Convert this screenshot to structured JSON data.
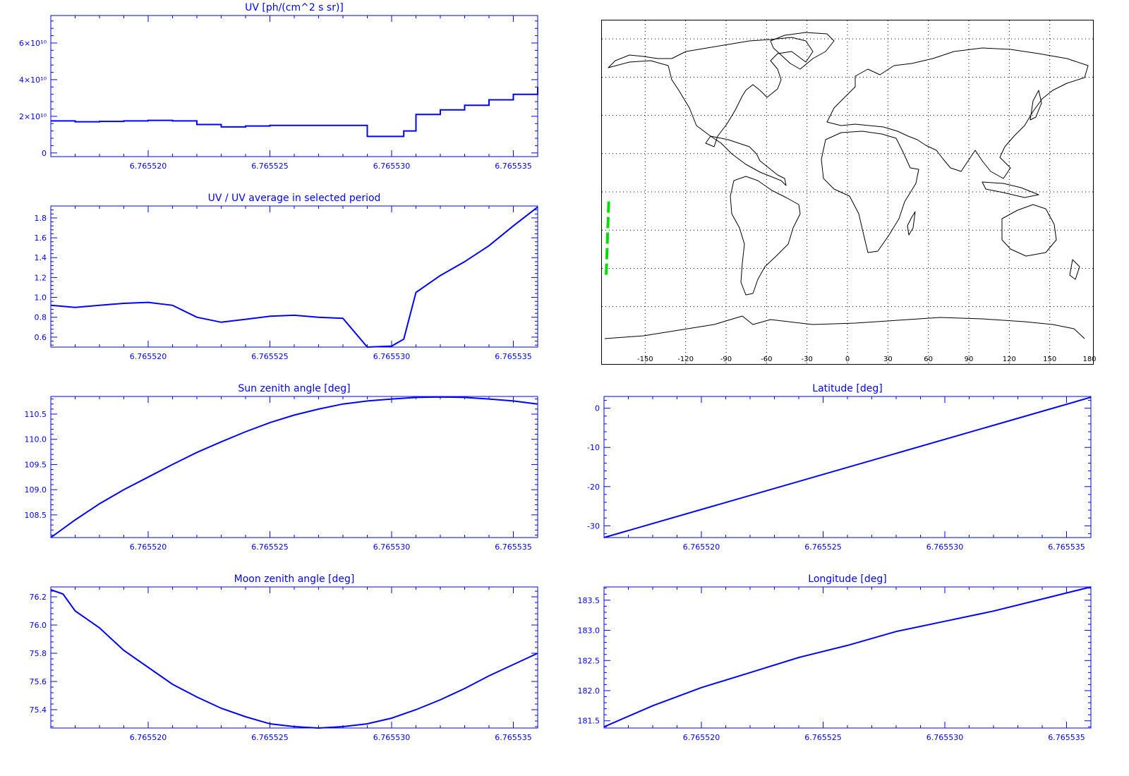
{
  "colors": {
    "axis": "#0000ff",
    "series": "#0000ff",
    "track": "#00dd00",
    "map": "#000000"
  },
  "map": {
    "lon_ticks": [
      "-150",
      "-120",
      "-90",
      "-60",
      "-30",
      "0",
      "30",
      "60",
      "90",
      "120",
      "150",
      "180"
    ],
    "lon_range": [
      -180,
      180
    ],
    "lat_range": [
      -90,
      90
    ],
    "grid": "dotted",
    "track": [
      [
        -177,
        -5
      ],
      [
        -177.5,
        -15
      ],
      [
        -178,
        -25
      ],
      [
        -178.5,
        -35
      ],
      [
        -179,
        -45
      ]
    ]
  },
  "chart_data": [
    {
      "type": "line",
      "id": "uv",
      "title": "UV [ph/(cm^2 s sr)]",
      "step": true,
      "xlim": [
        6.765516,
        6.765536
      ],
      "xticks": [
        6.76552,
        6.765525,
        6.76553,
        6.765535
      ],
      "xtick_labels": [
        "6.765520",
        "6.765525",
        "6.765530",
        "6.765535"
      ],
      "ylim": [
        -2000000000.0,
        75000000000.0
      ],
      "yticks": [
        0,
        20000000000.0,
        40000000000.0,
        60000000000.0
      ],
      "ytick_labels": [
        "0",
        "2×10¹⁰",
        "4×10¹⁰",
        "6×10¹⁰"
      ],
      "x": [
        6.765516,
        6.765517,
        6.765518,
        6.765519,
        6.76552,
        6.765521,
        6.765522,
        6.765523,
        6.765524,
        6.765525,
        6.765526,
        6.765527,
        6.765528,
        6.765529,
        6.76553,
        6.7655305,
        6.765531,
        6.765532,
        6.765533,
        6.765534,
        6.765535,
        6.765536
      ],
      "y": [
        17500000000.0,
        17000000000.0,
        17200000000.0,
        17500000000.0,
        17800000000.0,
        17500000000.0,
        15500000000.0,
        14200000000.0,
        14700000000.0,
        15000000000.0,
        15000000000.0,
        15000000000.0,
        15000000000.0,
        9000000000.0,
        9000000000.0,
        12000000000.0,
        21000000000.0,
        23500000000.0,
        26000000000.0,
        29000000000.0,
        32000000000.0,
        36000000000.0
      ]
    },
    {
      "type": "line",
      "id": "ratio",
      "title": "UV / UV average in selected period",
      "xlim": [
        6.765516,
        6.765536
      ],
      "xticks": [
        6.76552,
        6.765525,
        6.76553,
        6.765535
      ],
      "xtick_labels": [
        "6.765520",
        "6.765525",
        "6.765530",
        "6.765535"
      ],
      "ylim": [
        0.5,
        1.92
      ],
      "yticks": [
        0.6,
        0.8,
        1.0,
        1.2,
        1.4,
        1.6,
        1.8
      ],
      "ytick_labels": [
        "0.6",
        "0.8",
        "1.0",
        "1.2",
        "1.4",
        "1.6",
        "1.8"
      ],
      "x": [
        6.765516,
        6.765517,
        6.765518,
        6.765519,
        6.76552,
        6.765521,
        6.765522,
        6.765523,
        6.765524,
        6.765525,
        6.765526,
        6.765527,
        6.765528,
        6.765529,
        6.76553,
        6.7655305,
        6.765531,
        6.765532,
        6.765533,
        6.765534,
        6.765535,
        6.765536
      ],
      "y": [
        0.92,
        0.9,
        0.92,
        0.94,
        0.95,
        0.92,
        0.8,
        0.75,
        0.78,
        0.81,
        0.82,
        0.8,
        0.79,
        0.5,
        0.51,
        0.58,
        1.05,
        1.22,
        1.36,
        1.52,
        1.72,
        1.91
      ]
    },
    {
      "type": "line",
      "id": "sun",
      "title": "Sun zenith angle [deg]",
      "xlim": [
        6.765516,
        6.765536
      ],
      "xticks": [
        6.76552,
        6.765525,
        6.76553,
        6.765535
      ],
      "xtick_labels": [
        "6.765520",
        "6.765525",
        "6.765530",
        "6.765535"
      ],
      "ylim": [
        108.05,
        110.85
      ],
      "yticks": [
        108.5,
        109.0,
        109.5,
        110.0,
        110.5
      ],
      "ytick_labels": [
        "108.5",
        "109.0",
        "109.5",
        "110.0",
        "110.5"
      ],
      "x": [
        6.765516,
        6.765517,
        6.765518,
        6.765519,
        6.76552,
        6.765521,
        6.765522,
        6.765523,
        6.765524,
        6.765525,
        6.765526,
        6.765527,
        6.765528,
        6.765529,
        6.76553,
        6.765531,
        6.765532,
        6.765533,
        6.765534,
        6.765535,
        6.765536
      ],
      "y": [
        108.05,
        108.4,
        108.72,
        109.0,
        109.25,
        109.5,
        109.74,
        109.95,
        110.15,
        110.33,
        110.48,
        110.6,
        110.7,
        110.76,
        110.8,
        110.83,
        110.84,
        110.83,
        110.8,
        110.76,
        110.7
      ]
    },
    {
      "type": "line",
      "id": "lat",
      "title": "Latitude [deg]",
      "xlim": [
        6.765516,
        6.765536
      ],
      "xticks": [
        6.76552,
        6.765525,
        6.76553,
        6.765535
      ],
      "xtick_labels": [
        "6.765520",
        "6.765525",
        "6.765530",
        "6.765535"
      ],
      "ylim": [
        -33,
        3
      ],
      "yticks": [
        -30,
        -20,
        -10,
        0
      ],
      "ytick_labels": [
        "-30",
        "-20",
        "-10",
        "0"
      ],
      "x": [
        6.765516,
        6.765536
      ],
      "y": [
        -33,
        2.8
      ]
    },
    {
      "type": "line",
      "id": "moon",
      "title": "Moon zenith angle [deg]",
      "xlim": [
        6.765516,
        6.765536
      ],
      "xticks": [
        6.76552,
        6.765525,
        6.76553,
        6.765535
      ],
      "xtick_labels": [
        "6.765520",
        "6.765525",
        "6.765530",
        "6.765535"
      ],
      "ylim": [
        75.27,
        76.27
      ],
      "yticks": [
        75.4,
        75.6,
        75.8,
        76.0,
        76.2
      ],
      "ytick_labels": [
        "75.4",
        "75.6",
        "75.8",
        "76.0",
        "76.2"
      ],
      "x": [
        6.765516,
        6.7655165,
        6.765517,
        6.765518,
        6.765519,
        6.76552,
        6.765521,
        6.765522,
        6.765523,
        6.765524,
        6.765525,
        6.765526,
        6.765527,
        6.765528,
        6.765529,
        6.76553,
        6.765531,
        6.765532,
        6.765533,
        6.765534,
        6.765535,
        6.765536
      ],
      "y": [
        76.25,
        76.22,
        76.1,
        75.98,
        75.82,
        75.7,
        75.58,
        75.49,
        75.41,
        75.35,
        75.3,
        75.28,
        75.27,
        75.28,
        75.3,
        75.34,
        75.4,
        75.47,
        75.55,
        75.64,
        75.72,
        75.8
      ]
    },
    {
      "type": "line",
      "id": "lon",
      "title": "Longitude [deg]",
      "xlim": [
        6.765516,
        6.765536
      ],
      "xticks": [
        6.76552,
        6.765525,
        6.76553,
        6.765535
      ],
      "xtick_labels": [
        "6.765520",
        "6.765525",
        "6.765530",
        "6.765535"
      ],
      "ylim": [
        181.38,
        183.72
      ],
      "yticks": [
        181.5,
        182.0,
        182.5,
        183.0,
        183.5
      ],
      "ytick_labels": [
        "181.5",
        "182.0",
        "182.5",
        "183.0",
        "183.5"
      ],
      "x": [
        6.765516,
        6.765518,
        6.76552,
        6.765522,
        6.765524,
        6.765526,
        6.765528,
        6.76553,
        6.765532,
        6.765534,
        6.765536
      ],
      "y": [
        181.4,
        181.75,
        182.05,
        182.3,
        182.55,
        182.75,
        182.98,
        183.15,
        183.32,
        183.52,
        183.72
      ]
    }
  ]
}
